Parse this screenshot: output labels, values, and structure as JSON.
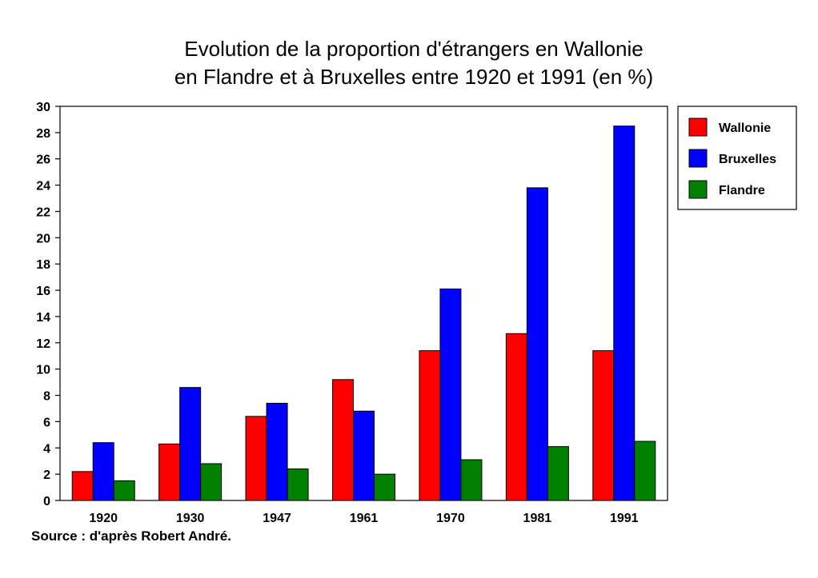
{
  "chart_data": {
    "type": "bar",
    "title": "Evolution de la proportion d'étrangers en Wallonie",
    "subtitle": "en Flandre et à Bruxelles entre  1920 et 1991 (en %)",
    "categories": [
      "1920",
      "1930",
      "1947",
      "1961",
      "1970",
      "1981",
      "1991"
    ],
    "series": [
      {
        "name": "Wallonie",
        "color": "#ff0000",
        "values": [
          2.2,
          4.3,
          6.4,
          9.2,
          11.4,
          12.7,
          11.4
        ]
      },
      {
        "name": "Bruxelles",
        "color": "#0000ff",
        "values": [
          4.4,
          8.6,
          7.4,
          6.8,
          16.1,
          23.8,
          28.5
        ]
      },
      {
        "name": "Flandre",
        "color": "#008000",
        "values": [
          1.5,
          2.8,
          2.4,
          2.0,
          3.1,
          4.1,
          4.5
        ]
      }
    ],
    "ylim": [
      0,
      30
    ],
    "yticks": [
      "0",
      "2",
      "4",
      "6",
      "8",
      "10",
      "12",
      "14",
      "16",
      "18",
      "20",
      "22",
      "24",
      "26",
      "28",
      "30"
    ],
    "xlabel": "",
    "ylabel": "",
    "grid": false,
    "legend_position": "top-right",
    "source": "Source : d'après Robert André."
  }
}
